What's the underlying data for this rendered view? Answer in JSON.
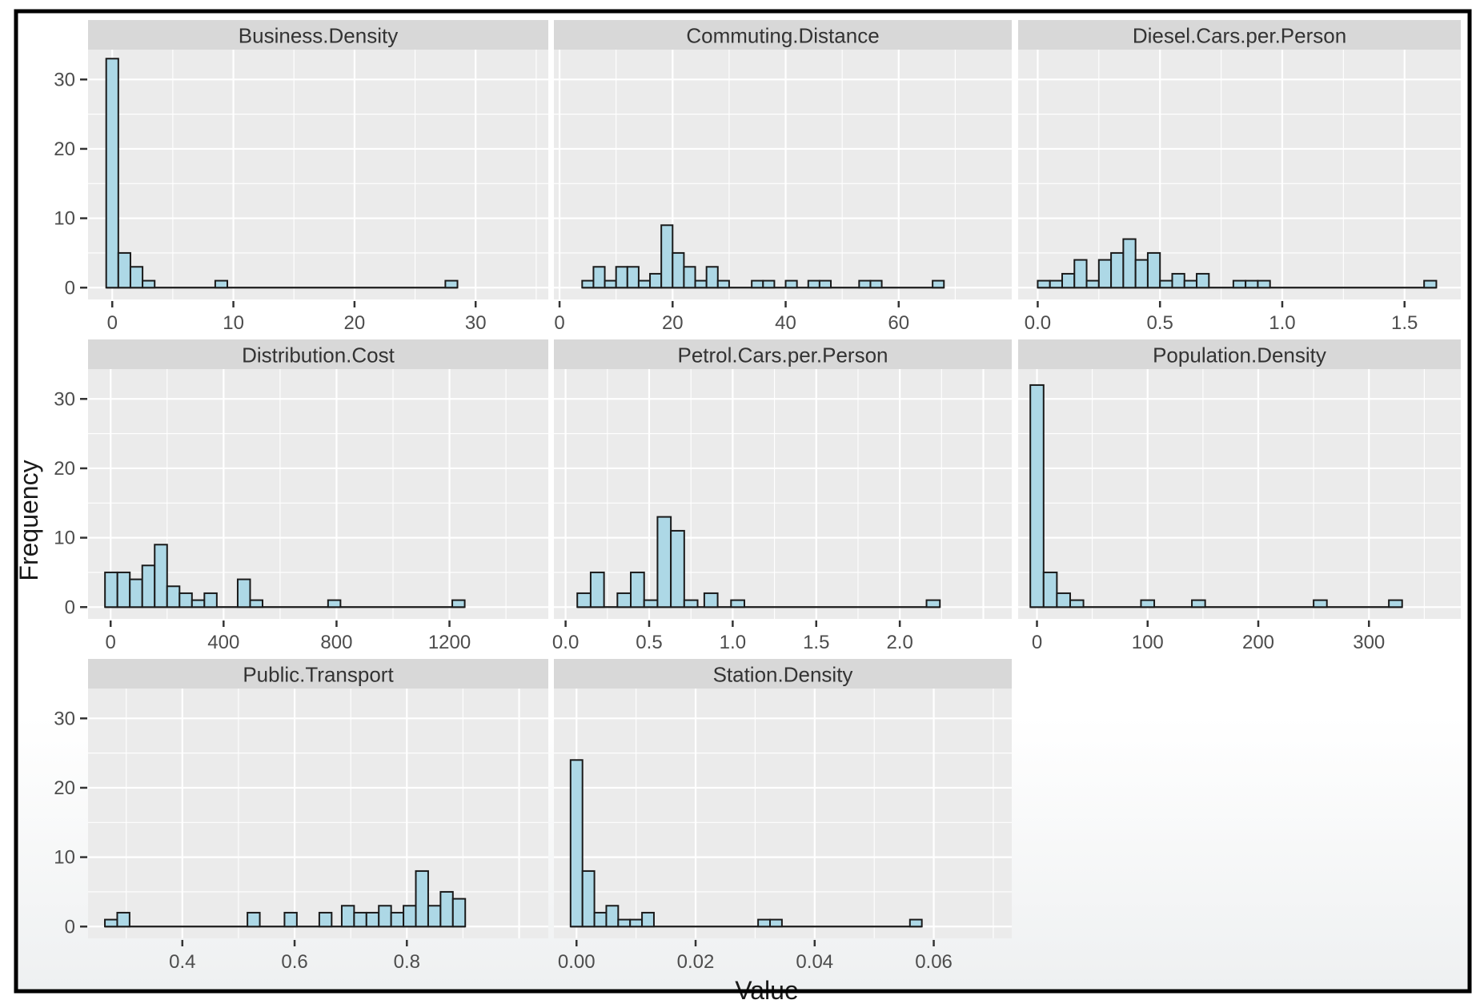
{
  "figure": {
    "x_axis_title": "Value",
    "y_axis_title": "Frequency",
    "y_ticks": [
      0,
      10,
      20,
      30
    ],
    "y_tick_labels": [
      "0",
      "10",
      "20",
      "30"
    ],
    "ylim": [
      -1.7,
      34.3
    ],
    "colors": {
      "figure_background": "#ffffff",
      "figure_border": "#000000",
      "panel_background": "#ebebeb",
      "strip_background": "#d8d8d8",
      "gridline": "#ffffff",
      "bar_fill": "#ADD8E6",
      "bar_stroke": "#1a1a1a",
      "tick_label": "#4d4d4d",
      "tick_mark": "#333333",
      "strip_text": "#333333",
      "axis_title": "#1a1a1a"
    }
  },
  "chart_data": [
    {
      "type": "bar",
      "title": "Business.Density",
      "bin_width": 1,
      "xlim": [
        -2,
        36
      ],
      "x_tick_values": [
        0,
        10,
        20,
        30
      ],
      "x_tick_labels": [
        "0",
        "10",
        "20",
        "30"
      ],
      "bins": [
        [
          -0.5,
          33
        ],
        [
          0.5,
          5
        ],
        [
          1.5,
          3
        ],
        [
          2.5,
          1
        ],
        [
          8.5,
          1
        ],
        [
          27.5,
          1
        ]
      ]
    },
    {
      "type": "bar",
      "title": "Commuting.Distance",
      "bin_width": 2,
      "xlim": [
        -1,
        80
      ],
      "x_tick_values": [
        0,
        20,
        40,
        60
      ],
      "x_tick_labels": [
        "0",
        "20",
        "40",
        "60"
      ],
      "bins": [
        [
          4,
          1
        ],
        [
          6,
          3
        ],
        [
          8,
          1
        ],
        [
          10,
          3
        ],
        [
          12,
          3
        ],
        [
          14,
          1
        ],
        [
          16,
          2
        ],
        [
          18,
          9
        ],
        [
          20,
          5
        ],
        [
          22,
          3
        ],
        [
          24,
          1
        ],
        [
          26,
          3
        ],
        [
          28,
          1
        ],
        [
          34,
          1
        ],
        [
          36,
          1
        ],
        [
          40,
          1
        ],
        [
          44,
          1
        ],
        [
          46,
          1
        ],
        [
          53,
          1
        ],
        [
          55,
          1
        ],
        [
          66,
          1
        ]
      ]
    },
    {
      "type": "bar",
      "title": "Diesel.Cars.per.Person",
      "bin_width": 0.05,
      "xlim": [
        -0.08,
        1.73
      ],
      "x_tick_values": [
        0,
        0.5,
        1.0,
        1.5
      ],
      "x_tick_labels": [
        "0.0",
        "0.5",
        "1.0",
        "1.5"
      ],
      "bins": [
        [
          0,
          1
        ],
        [
          0.05,
          1
        ],
        [
          0.1,
          2
        ],
        [
          0.15,
          4
        ],
        [
          0.2,
          1
        ],
        [
          0.25,
          4
        ],
        [
          0.3,
          5
        ],
        [
          0.35,
          7
        ],
        [
          0.4,
          4
        ],
        [
          0.45,
          5
        ],
        [
          0.5,
          1
        ],
        [
          0.55,
          2
        ],
        [
          0.6,
          1
        ],
        [
          0.65,
          2
        ],
        [
          0.8,
          1
        ],
        [
          0.85,
          1
        ],
        [
          0.9,
          1
        ],
        [
          1.58,
          1
        ]
      ]
    },
    {
      "type": "bar",
      "title": "Distribution.Cost",
      "bin_width": 44,
      "xlim": [
        -80,
        1550
      ],
      "x_tick_values": [
        0,
        400,
        800,
        1200
      ],
      "x_tick_labels": [
        "0",
        "400",
        "800",
        "1200"
      ],
      "bins": [
        [
          -20,
          5
        ],
        [
          24,
          5
        ],
        [
          68,
          4
        ],
        [
          112,
          6
        ],
        [
          156,
          9
        ],
        [
          200,
          3
        ],
        [
          244,
          2
        ],
        [
          288,
          1
        ],
        [
          332,
          2
        ],
        [
          450,
          4
        ],
        [
          494,
          1
        ],
        [
          770,
          1
        ],
        [
          1210,
          1
        ]
      ]
    },
    {
      "type": "bar",
      "title": "Petrol.Cars.per.Person",
      "bin_width": 0.08,
      "xlim": [
        -0.07,
        2.67
      ],
      "x_tick_values": [
        0,
        0.5,
        1.0,
        1.5,
        2.0
      ],
      "x_tick_labels": [
        "0.0",
        "0.5",
        "1.0",
        "1.5",
        "2.0"
      ],
      "bins": [
        [
          0.07,
          2
        ],
        [
          0.15,
          5
        ],
        [
          0.31,
          2
        ],
        [
          0.39,
          5
        ],
        [
          0.47,
          1
        ],
        [
          0.55,
          13
        ],
        [
          0.63,
          11
        ],
        [
          0.71,
          1
        ],
        [
          0.83,
          2
        ],
        [
          0.99,
          1
        ],
        [
          2.16,
          1
        ]
      ]
    },
    {
      "type": "bar",
      "title": "Population.Density",
      "bin_width": 12,
      "xlim": [
        -17,
        383
      ],
      "x_tick_values": [
        0,
        100,
        200,
        300
      ],
      "x_tick_labels": [
        "0",
        "100",
        "200",
        "300"
      ],
      "bins": [
        [
          -6,
          32
        ],
        [
          6,
          5
        ],
        [
          18,
          2
        ],
        [
          30,
          1
        ],
        [
          94,
          1
        ],
        [
          140,
          1
        ],
        [
          250,
          1
        ],
        [
          318,
          1
        ]
      ]
    },
    {
      "type": "bar",
      "title": "Public.Transport",
      "bin_width": 0.022,
      "xlim": [
        0.232,
        1.052
      ],
      "x_tick_values": [
        0.4,
        0.6,
        0.8
      ],
      "x_tick_labels": [
        "0.4",
        "0.6",
        "0.8"
      ],
      "bins": [
        [
          0.262,
          1
        ],
        [
          0.284,
          2
        ],
        [
          0.516,
          2
        ],
        [
          0.582,
          2
        ],
        [
          0.644,
          2
        ],
        [
          0.684,
          3
        ],
        [
          0.706,
          2
        ],
        [
          0.728,
          2
        ],
        [
          0.75,
          3
        ],
        [
          0.772,
          2
        ],
        [
          0.794,
          3
        ],
        [
          0.816,
          8
        ],
        [
          0.838,
          3
        ],
        [
          0.86,
          5
        ],
        [
          0.882,
          4
        ]
      ]
    },
    {
      "type": "bar",
      "title": "Station.Density",
      "bin_width": 0.002,
      "xlim": [
        -0.0038,
        0.0731
      ],
      "x_tick_values": [
        0,
        0.02,
        0.04,
        0.06
      ],
      "x_tick_labels": [
        "0.00",
        "0.02",
        "0.04",
        "0.06"
      ],
      "bins": [
        [
          -0.001,
          24
        ],
        [
          0.001,
          8
        ],
        [
          0.003,
          2
        ],
        [
          0.005,
          3
        ],
        [
          0.007,
          1
        ],
        [
          0.009,
          1
        ],
        [
          0.011,
          2
        ],
        [
          0.0305,
          1
        ],
        [
          0.0325,
          1
        ],
        [
          0.056,
          1
        ]
      ]
    }
  ]
}
